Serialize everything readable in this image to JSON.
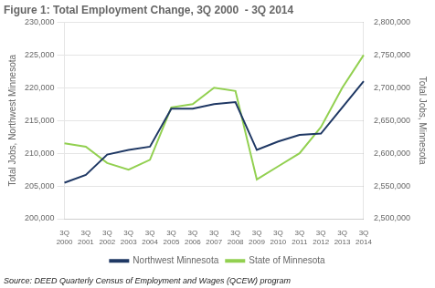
{
  "chart_data": {
    "type": "line",
    "title": "Figure 1: Total Employment Change, 3Q 2000  - 3Q 2014",
    "annotations": [
      "Source: DEED Quarterly Census of Employment and Wages (QCEW) program"
    ],
    "categories": [
      "3Q\n2000",
      "3Q\n2001",
      "3Q\n2002",
      "3Q\n2003",
      "3Q\n2004",
      "3Q\n2005",
      "3Q\n2006",
      "3Q\n2007",
      "3Q\n2008",
      "3Q\n2009",
      "3Q\n2010",
      "3Q\n2011",
      "3Q\n2012",
      "3Q\n2013",
      "3Q\n2014"
    ],
    "series": [
      {
        "name": "Northwest Minnesota",
        "color": "#1f3864",
        "values": [
          205500,
          206700,
          209800,
          210500,
          211000,
          216800,
          216800,
          217500,
          217800,
          210500,
          211800,
          212800,
          213000,
          217000,
          221000
        ]
      },
      {
        "name": "State of Minnesota",
        "color": "#92d050",
        "axis": "y2",
        "values": [
          2615000,
          2610000,
          2585000,
          2575000,
          2590000,
          2670000,
          2675000,
          2700000,
          2695000,
          2560000,
          2580000,
          2600000,
          2640000,
          2700000,
          2750000
        ]
      }
    ],
    "ylabel": "Total Jobs, Northwest Minnesota",
    "y2label": "Total Jobs, Minnesota",
    "ylim": [
      200000,
      230000
    ],
    "yticks": [
      {
        "value": 200000,
        "label": "200,000"
      },
      {
        "value": 205000,
        "label": "205,000"
      },
      {
        "value": 210000,
        "label": "210,000"
      },
      {
        "value": 215000,
        "label": "215,000"
      },
      {
        "value": 220000,
        "label": "220,000"
      },
      {
        "value": 225000,
        "label": "225,000"
      },
      {
        "value": 230000,
        "label": "230,000"
      }
    ],
    "y2lim": [
      2500000,
      2800000
    ],
    "y2ticks": [
      {
        "value": 2500000,
        "label": "2,500,000"
      },
      {
        "value": 2550000,
        "label": "2,550,000"
      },
      {
        "value": 2600000,
        "label": "2,600,000"
      },
      {
        "value": 2650000,
        "label": "2,650,000"
      },
      {
        "value": 2700000,
        "label": "2,700,000"
      },
      {
        "value": 2750000,
        "label": "2,750,000"
      },
      {
        "value": 2800000,
        "label": "2,800,000"
      }
    ],
    "grid": true,
    "legend": "bottom"
  }
}
